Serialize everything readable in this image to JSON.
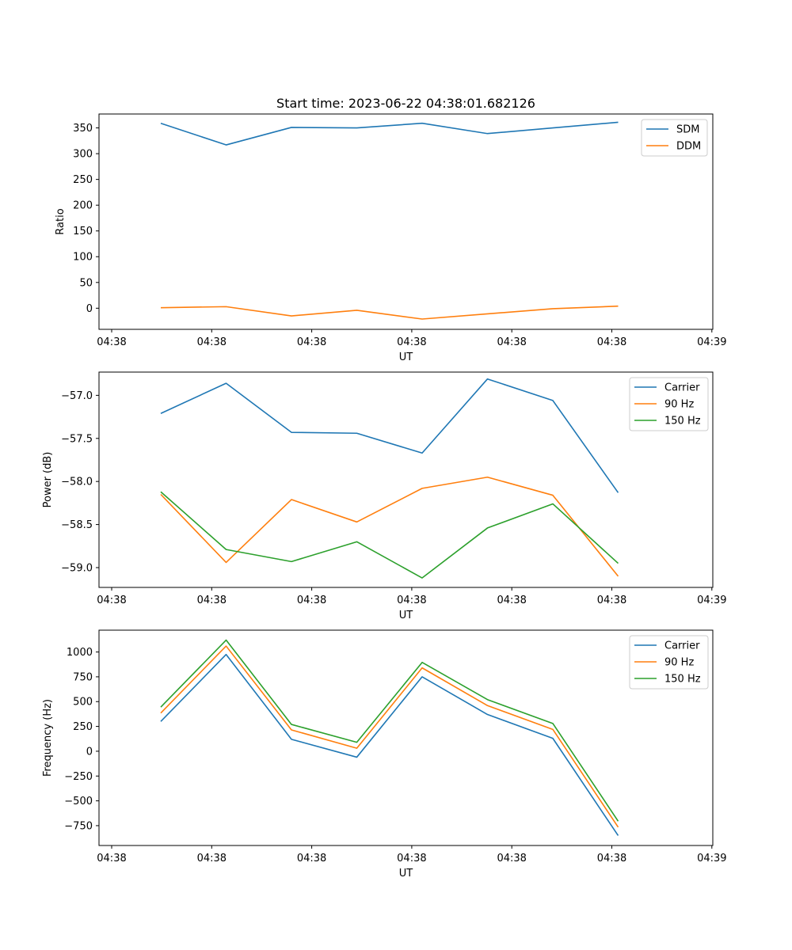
{
  "chart_data": [
    {
      "type": "line",
      "title": "Start time: 2023-06-22 04:38:01.682126",
      "xlabel": "UT",
      "ylabel": "Ratio",
      "x_tick_labels": [
        "04:38",
        "04:38",
        "04:38",
        "04:38",
        "04:38",
        "04:38",
        "04:38"
      ],
      "x_last_tick_label": "04:39",
      "y_ticks": [
        0,
        50,
        100,
        150,
        200,
        250,
        300,
        350
      ],
      "ylim": [
        -41,
        377
      ],
      "legend_loc": "upper right",
      "series": [
        {
          "name": "SDM",
          "color": "#1f77b4",
          "values": [
            359,
            317,
            351,
            350,
            359,
            339,
            350,
            361
          ]
        },
        {
          "name": "DDM",
          "color": "#ff7f0e",
          "values": [
            1,
            3,
            -15,
            -4,
            -21,
            -11,
            -1,
            4
          ]
        }
      ]
    },
    {
      "type": "line",
      "title": "",
      "xlabel": "UT",
      "ylabel": "Power (dB)",
      "x_tick_labels": [
        "04:38",
        "04:38",
        "04:38",
        "04:38",
        "04:38",
        "04:38",
        "04:38"
      ],
      "x_last_tick_label": "04:39",
      "y_ticks": [
        -57.0,
        -57.5,
        -58.0,
        -58.5,
        -59.0
      ],
      "y_tick_labels": [
        "−57.0",
        "−57.5",
        "−58.0",
        "−58.5",
        "−59.0"
      ],
      "ylim": [
        -59.23,
        -56.73
      ],
      "legend_loc": "upper right",
      "series": [
        {
          "name": "Carrier",
          "color": "#1f77b4",
          "values": [
            -57.21,
            -56.86,
            -57.43,
            -57.44,
            -57.67,
            -56.81,
            -57.06,
            -58.13
          ]
        },
        {
          "name": "90 Hz",
          "color": "#ff7f0e",
          "values": [
            -58.15,
            -58.94,
            -58.21,
            -58.47,
            -58.08,
            -57.95,
            -58.16,
            -59.1
          ]
        },
        {
          "name": "150 Hz",
          "color": "#2ca02c",
          "values": [
            -58.12,
            -58.79,
            -58.93,
            -58.7,
            -59.12,
            -58.54,
            -58.26,
            -58.95
          ]
        }
      ]
    },
    {
      "type": "line",
      "title": "",
      "xlabel": "UT",
      "ylabel": "Frequency (Hz)",
      "x_tick_labels": [
        "04:38",
        "04:38",
        "04:38",
        "04:38",
        "04:38",
        "04:38",
        "04:38"
      ],
      "x_last_tick_label": "04:39",
      "y_ticks": [
        1000,
        750,
        500,
        250,
        0,
        -250,
        -500,
        -750
      ],
      "y_tick_labels": [
        "1000",
        "750",
        "500",
        "250",
        "0",
        "−250",
        "−500",
        "−750"
      ],
      "ylim": [
        -950,
        1220
      ],
      "legend_loc": "upper right",
      "series": [
        {
          "name": "Carrier",
          "color": "#1f77b4",
          "values": [
            300,
            975,
            120,
            -60,
            750,
            370,
            130,
            -850
          ]
        },
        {
          "name": "90 Hz",
          "color": "#ff7f0e",
          "values": [
            385,
            1060,
            215,
            30,
            840,
            460,
            220,
            -765
          ]
        },
        {
          "name": "150 Hz",
          "color": "#2ca02c",
          "values": [
            445,
            1120,
            270,
            90,
            895,
            520,
            280,
            -705
          ]
        }
      ]
    }
  ]
}
